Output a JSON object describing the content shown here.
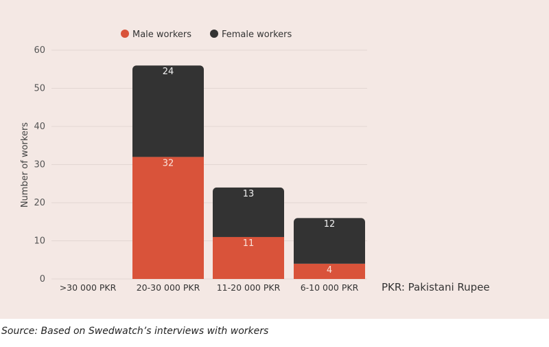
{
  "chart_data": {
    "type": "bar",
    "stacked": true,
    "categories": [
      ">30 000 PKR",
      "20-30 000 PKR",
      "11-20 000 PKR",
      "6-10 000 PKR"
    ],
    "series": [
      {
        "name": "Male workers",
        "values": [
          0,
          32,
          11,
          4
        ],
        "color": "#d9533a"
      },
      {
        "name": "Female workers",
        "values": [
          0,
          24,
          13,
          12
        ],
        "color": "#333333"
      }
    ],
    "ylabel": "Number of workers",
    "xlabel": "",
    "ylim": [
      0,
      60
    ],
    "yticks": [
      0,
      10,
      20,
      30,
      40,
      50,
      60
    ],
    "grid": true,
    "legend_position": "top",
    "annotation": "PKR: Pakistani Rupee"
  },
  "source_text": "Source: Based on Swedwatch’s interviews with workers",
  "colors": {
    "background": "#f4e8e4",
    "grid": "#e2d6d2"
  }
}
